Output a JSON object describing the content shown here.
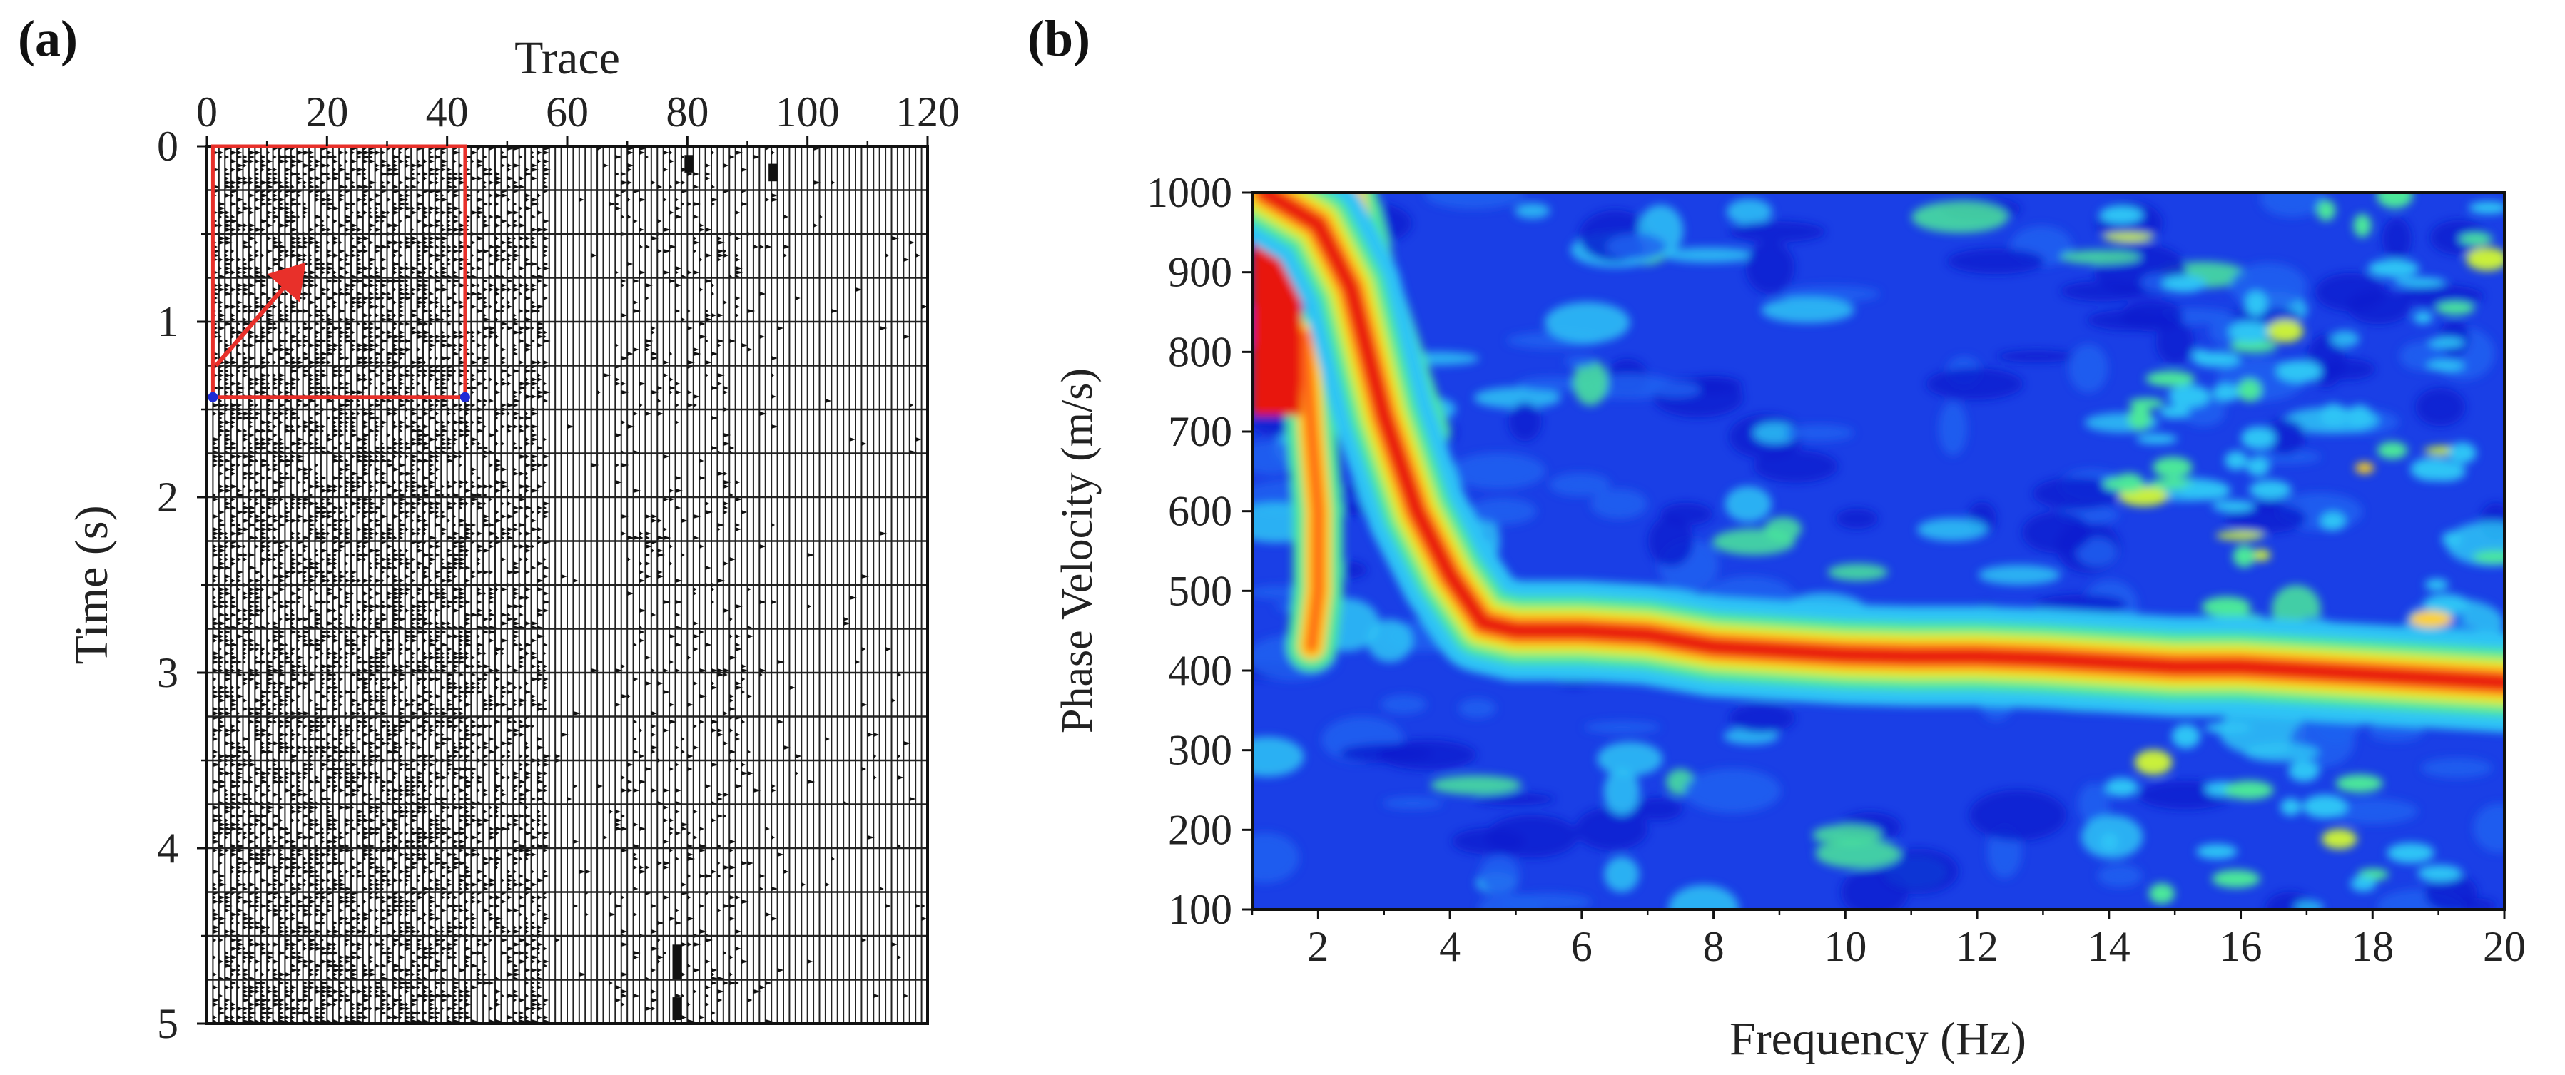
{
  "panels": {
    "a_label": "(a)",
    "b_label": "(b)"
  },
  "chart_data": [
    {
      "type": "heatmap",
      "name": "seismic-record",
      "title": "",
      "xlabel": "Trace",
      "ylabel": "Time (s)",
      "x_range": [
        0,
        120
      ],
      "y_range": [
        0,
        5
      ],
      "x_ticks": [
        0,
        20,
        40,
        60,
        80,
        100,
        120
      ],
      "y_ticks": [
        0,
        1,
        2,
        3,
        4,
        5
      ],
      "trace_count": 120,
      "annotations": {
        "box": {
          "trace_from": 1,
          "trace_to": 43,
          "time_from": 0,
          "time_to": 1.43,
          "color": "#e8302a"
        },
        "arrow": {
          "from_trace": 1.5,
          "from_time": 1.25,
          "to_trace": 16,
          "to_time": 0.68,
          "color": "#e8302a"
        }
      }
    },
    {
      "type": "heatmap",
      "name": "dispersion-image",
      "title": "",
      "xlabel": "Frequency (Hz)",
      "ylabel": "Phase Velocity (m/s)",
      "x_range": [
        1,
        20
      ],
      "y_range": [
        100,
        1000
      ],
      "x_ticks": [
        2,
        4,
        6,
        8,
        10,
        12,
        14,
        16,
        18,
        20
      ],
      "y_ticks": [
        100,
        200,
        300,
        400,
        500,
        600,
        700,
        800,
        900,
        1000
      ],
      "colormap": [
        "#0a1fd0",
        "#1e62f0",
        "#2ec4f5",
        "#4be89a",
        "#c9f03a",
        "#ffd21a",
        "#ff6a14",
        "#e8140a"
      ],
      "dispersion_curve": {
        "frequency": [
          1.2,
          2.0,
          2.5,
          3.0,
          3.5,
          4.0,
          4.5,
          5.0,
          6.0,
          7.0,
          8.0,
          9.0,
          10.0,
          11.0,
          12.0,
          13.0,
          14.0,
          15.0,
          16.0,
          17.0,
          18.0,
          19.0,
          20.0
        ],
        "phase_velocity": [
          1000,
          960,
          880,
          720,
          600,
          520,
          460,
          450,
          450,
          445,
          430,
          425,
          420,
          418,
          418,
          415,
          410,
          405,
          405,
          400,
          395,
          390,
          385
        ]
      },
      "secondary_modes": [
        {
          "frequency": [
            1.8,
            1.9,
            2.0,
            2.0,
            1.9
          ],
          "phase_velocity": [
            820,
            700,
            600,
            500,
            430
          ]
        },
        {
          "frequency": [
            2.5,
            2.8,
            3.2,
            3.6
          ],
          "phase_velocity": [
            1000,
            900,
            800,
            700
          ]
        }
      ]
    }
  ]
}
